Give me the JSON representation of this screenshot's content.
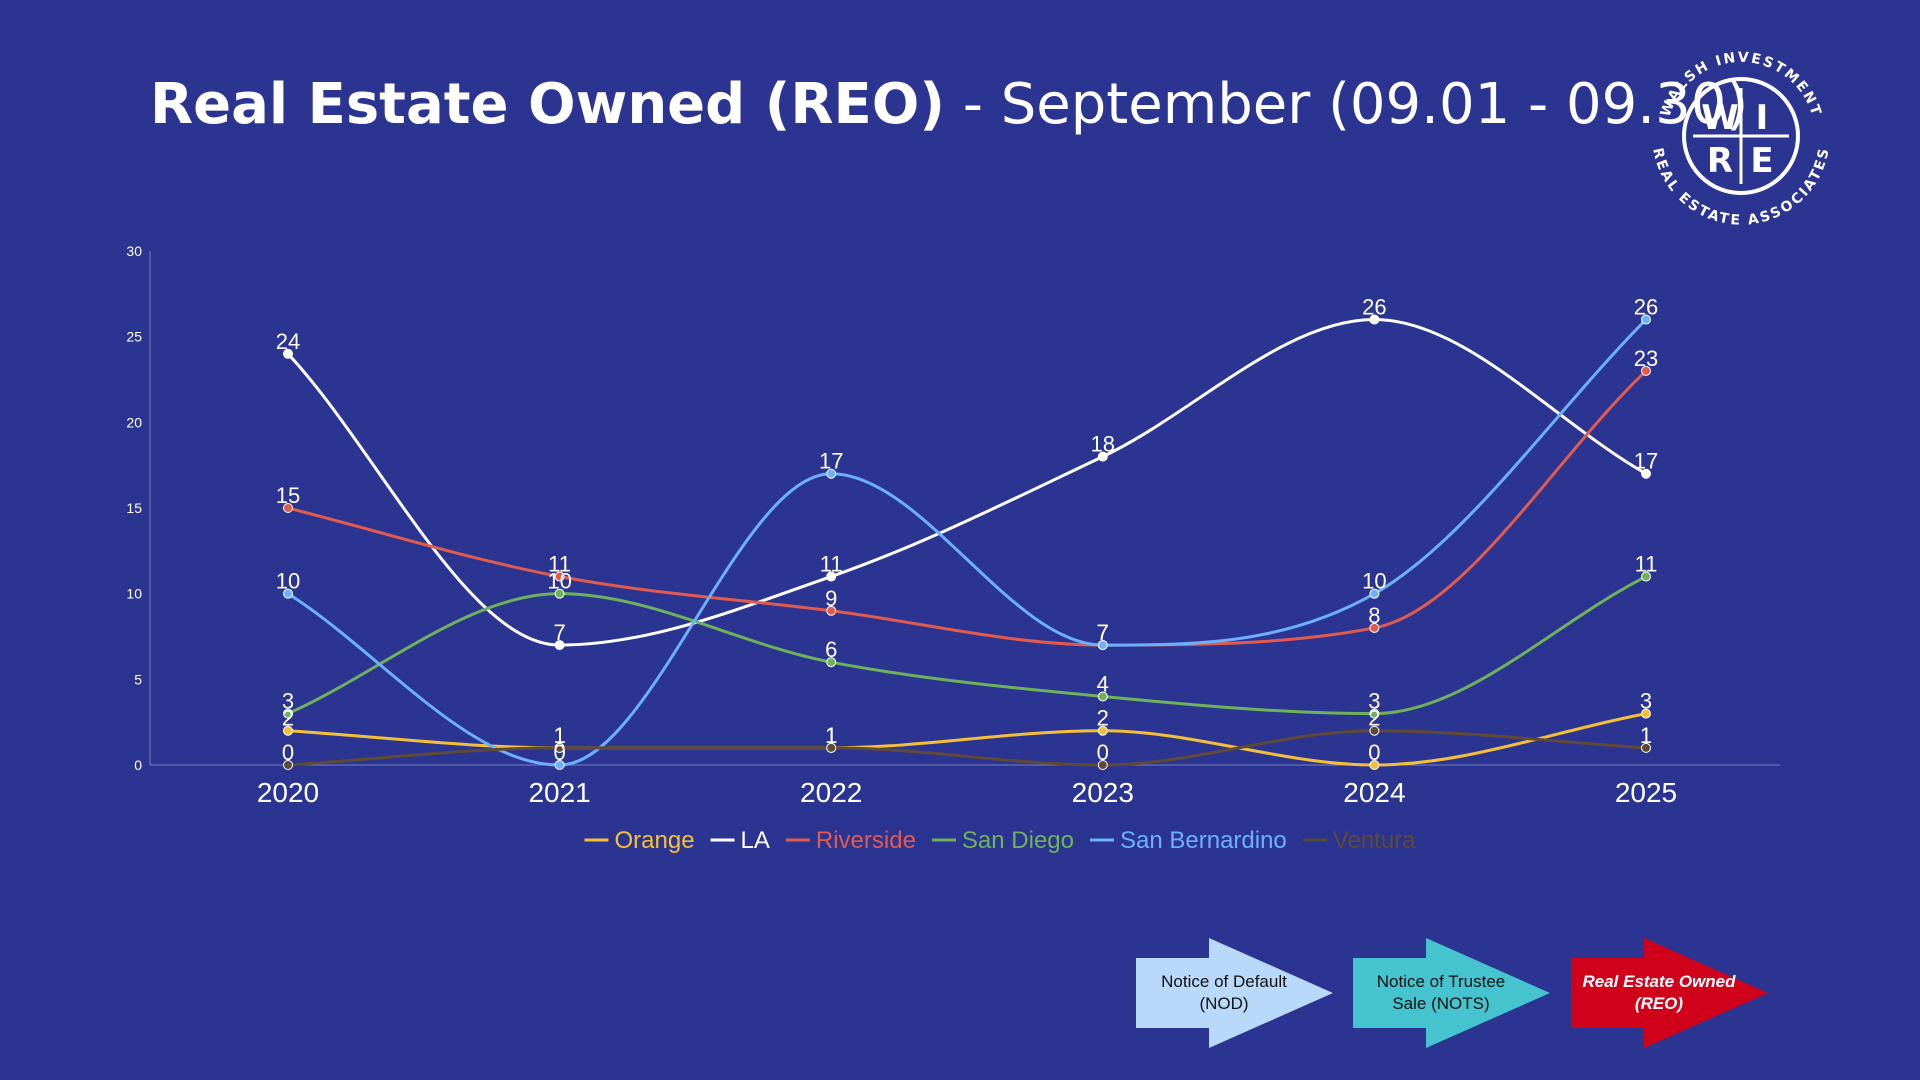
{
  "title": {
    "bold": "Real Estate Owned (REO)",
    "rest": " - September (09.01 - 09.30)"
  },
  "logo": {
    "top_text": "WALSH INVESTMENT",
    "bottom_text": "REAL ESTATE ASSOCIATES",
    "letters": [
      "W",
      "I",
      "R",
      "E"
    ]
  },
  "chart_data": {
    "type": "line",
    "categories": [
      "2020",
      "2021",
      "2022",
      "2023",
      "2024",
      "2025"
    ],
    "ylim": [
      0,
      30
    ],
    "yticks": [
      0,
      5,
      10,
      15,
      20,
      25,
      30
    ],
    "grid": false,
    "legend": "bottom",
    "series": [
      {
        "name": "Orange",
        "color": "#f4c03a",
        "values": [
          2,
          1,
          1,
          2,
          0,
          3
        ]
      },
      {
        "name": "LA",
        "color": "#ffffff",
        "values": [
          24,
          7,
          11,
          18,
          26,
          17
        ]
      },
      {
        "name": "Riverside",
        "color": "#e25b4f",
        "values": [
          15,
          11,
          9,
          7,
          8,
          23
        ]
      },
      {
        "name": "San Diego",
        "color": "#6fb25c",
        "values": [
          3,
          10,
          6,
          4,
          3,
          11
        ]
      },
      {
        "name": "San Bernardino",
        "color": "#6cb0ff",
        "values": [
          10,
          0,
          17,
          7,
          10,
          26
        ]
      },
      {
        "name": "Ventura",
        "color": "#5e4a36",
        "values": [
          0,
          1,
          1,
          0,
          2,
          1
        ]
      }
    ]
  },
  "process": [
    {
      "label_line1": "Notice of Default",
      "label_line2": "(NOD)",
      "color": "#b9d9fb",
      "text_color": "#111111",
      "italic": false
    },
    {
      "label_line1": "Notice of Trustee",
      "label_line2": "Sale (NOTS)",
      "color": "#45c4cf",
      "text_color": "#111111",
      "italic": false
    },
    {
      "label_line1": "Real Estate Owned",
      "label_line2": "(REO)",
      "color": "#d0021b",
      "text_color": "#ffffff",
      "italic": true
    }
  ]
}
